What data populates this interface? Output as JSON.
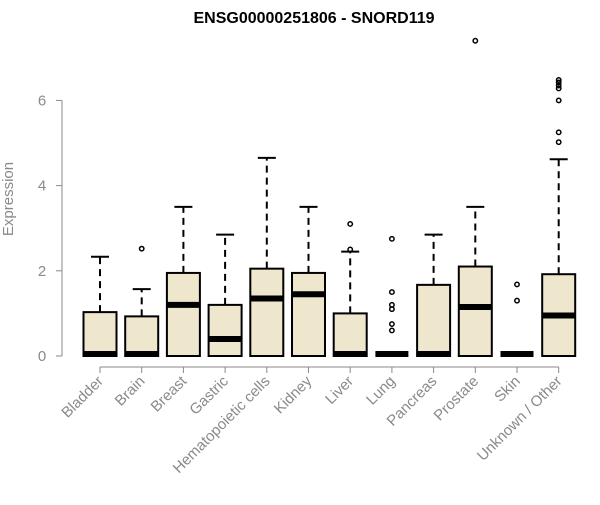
{
  "chart_data": {
    "type": "boxplot",
    "title": "ENSG00000251806 - SNORD119",
    "xlabel": "",
    "ylabel": "Expression",
    "ylim": [
      0,
      7.4
    ],
    "yticks": [
      0,
      2,
      4,
      6
    ],
    "grid": false,
    "legend": "none",
    "colors": {
      "box_fill": "#EEE7CD",
      "stroke": "#000000",
      "axis_text": "#8a8a8a"
    },
    "categories": [
      "Bladder",
      "Brain",
      "Breast",
      "Gastric",
      "Hematopoietic cells",
      "Kidney",
      "Liver",
      "Lung",
      "Pancreas",
      "Prostate",
      "Skin",
      "Unknown / Other"
    ],
    "boxes": [
      {
        "label": "Bladder",
        "whisker_low": 0,
        "q1": 0,
        "median": 0,
        "q3": 1.03,
        "whisker_high": 2.33,
        "outliers": []
      },
      {
        "label": "Brain",
        "whisker_low": 0,
        "q1": 0,
        "median": 0,
        "q3": 0.93,
        "whisker_high": 1.57,
        "outliers": [
          2.52
        ]
      },
      {
        "label": "Breast",
        "whisker_low": 0,
        "q1": 0,
        "median": 1.2,
        "q3": 1.95,
        "whisker_high": 3.5,
        "outliers": []
      },
      {
        "label": "Gastric",
        "whisker_low": 0,
        "q1": 0,
        "median": 0.4,
        "q3": 1.2,
        "whisker_high": 2.85,
        "outliers": []
      },
      {
        "label": "Hematopoietic cells",
        "whisker_low": 0,
        "q1": 0,
        "median": 1.35,
        "q3": 2.05,
        "whisker_high": 4.65,
        "outliers": []
      },
      {
        "label": "Kidney",
        "whisker_low": 0,
        "q1": 0,
        "median": 1.45,
        "q3": 1.95,
        "whisker_high": 3.5,
        "outliers": []
      },
      {
        "label": "Liver",
        "whisker_low": 0,
        "q1": 0,
        "median": 0,
        "q3": 1.0,
        "whisker_high": 2.45,
        "outliers": [
          2.5,
          3.1
        ]
      },
      {
        "label": "Lung",
        "whisker_low": 0,
        "q1": 0,
        "median": 0,
        "q3": 0,
        "whisker_high": 0,
        "outliers": [
          0.6,
          0.75,
          1.1,
          1.2,
          1.5,
          2.75
        ]
      },
      {
        "label": "Pancreas",
        "whisker_low": 0,
        "q1": 0,
        "median": 0,
        "q3": 1.67,
        "whisker_high": 2.85,
        "outliers": []
      },
      {
        "label": "Prostate",
        "whisker_low": 0,
        "q1": 0,
        "median": 1.15,
        "q3": 2.1,
        "whisker_high": 3.5,
        "outliers": [
          7.4
        ]
      },
      {
        "label": "Skin",
        "whisker_low": 0,
        "q1": 0,
        "median": 0,
        "q3": 0,
        "whisker_high": 0,
        "outliers": [
          1.3,
          1.68
        ]
      },
      {
        "label": "Unknown / Other",
        "whisker_low": 0,
        "q1": 0,
        "median": 0.95,
        "q3": 1.92,
        "whisker_high": 4.62,
        "outliers": [
          5.02,
          5.25,
          6.0,
          6.28,
          6.35,
          6.42,
          6.48
        ]
      }
    ]
  }
}
